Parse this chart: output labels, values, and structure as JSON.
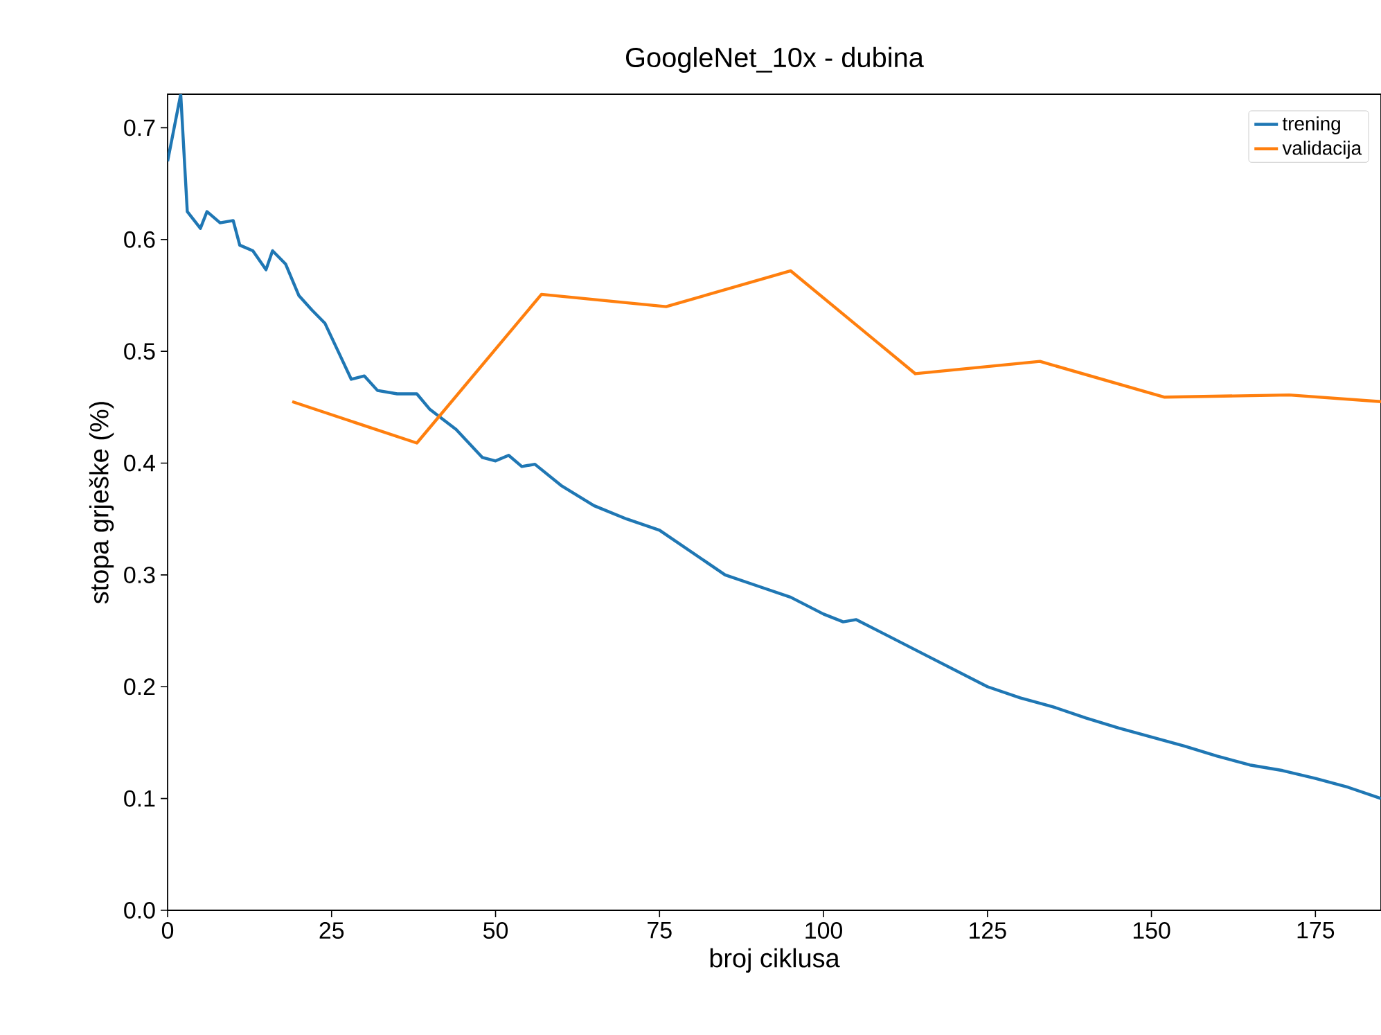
{
  "chart_data": {
    "type": "line",
    "title": "GoogleNet_10x - dubina",
    "xlabel": "broj ciklusa",
    "ylabel": "stopa grješke (%)",
    "xlim": [
      0,
      185
    ],
    "ylim": [
      0,
      0.73
    ],
    "xticks": [
      0,
      25,
      50,
      75,
      100,
      125,
      150,
      175
    ],
    "yticks": [
      {
        "value": 0,
        "label": "0.0"
      },
      0.1,
      0.2,
      0.3,
      0.4,
      0.5,
      0.6,
      0.7
    ],
    "legend": "top right",
    "grid": false,
    "series": [
      {
        "name": "trening",
        "color": "#1f77b4",
        "x": [
          0,
          2,
          3,
          5,
          6,
          8,
          10,
          11,
          13,
          15,
          16,
          18,
          20,
          22,
          24,
          26,
          28,
          30,
          32,
          35,
          38,
          40,
          44,
          48,
          50,
          52,
          54,
          56,
          60,
          65,
          70,
          75,
          80,
          85,
          90,
          95,
          100,
          103,
          105,
          110,
          115,
          120,
          125,
          130,
          135,
          140,
          145,
          150,
          155,
          160,
          165,
          170,
          175,
          180,
          185
        ],
        "values": [
          0.67,
          0.73,
          0.625,
          0.61,
          0.625,
          0.615,
          0.617,
          0.595,
          0.59,
          0.573,
          0.59,
          0.578,
          0.55,
          0.537,
          0.525,
          0.5,
          0.475,
          0.478,
          0.465,
          0.462,
          0.462,
          0.448,
          0.43,
          0.405,
          0.402,
          0.407,
          0.397,
          0.399,
          0.38,
          0.362,
          0.35,
          0.34,
          0.32,
          0.3,
          0.29,
          0.28,
          0.265,
          0.258,
          0.26,
          0.245,
          0.23,
          0.215,
          0.2,
          0.19,
          0.182,
          0.172,
          0.163,
          0.155,
          0.147,
          0.138,
          0.13,
          0.125,
          0.118,
          0.11,
          0.1
        ]
      },
      {
        "name": "validacija",
        "color": "#ff7f0e",
        "x": [
          19,
          38,
          57,
          76,
          95,
          114,
          133,
          152,
          171,
          185
        ],
        "values": [
          0.455,
          0.418,
          0.551,
          0.54,
          0.572,
          0.48,
          0.491,
          0.459,
          0.461,
          0.455
        ]
      }
    ]
  }
}
